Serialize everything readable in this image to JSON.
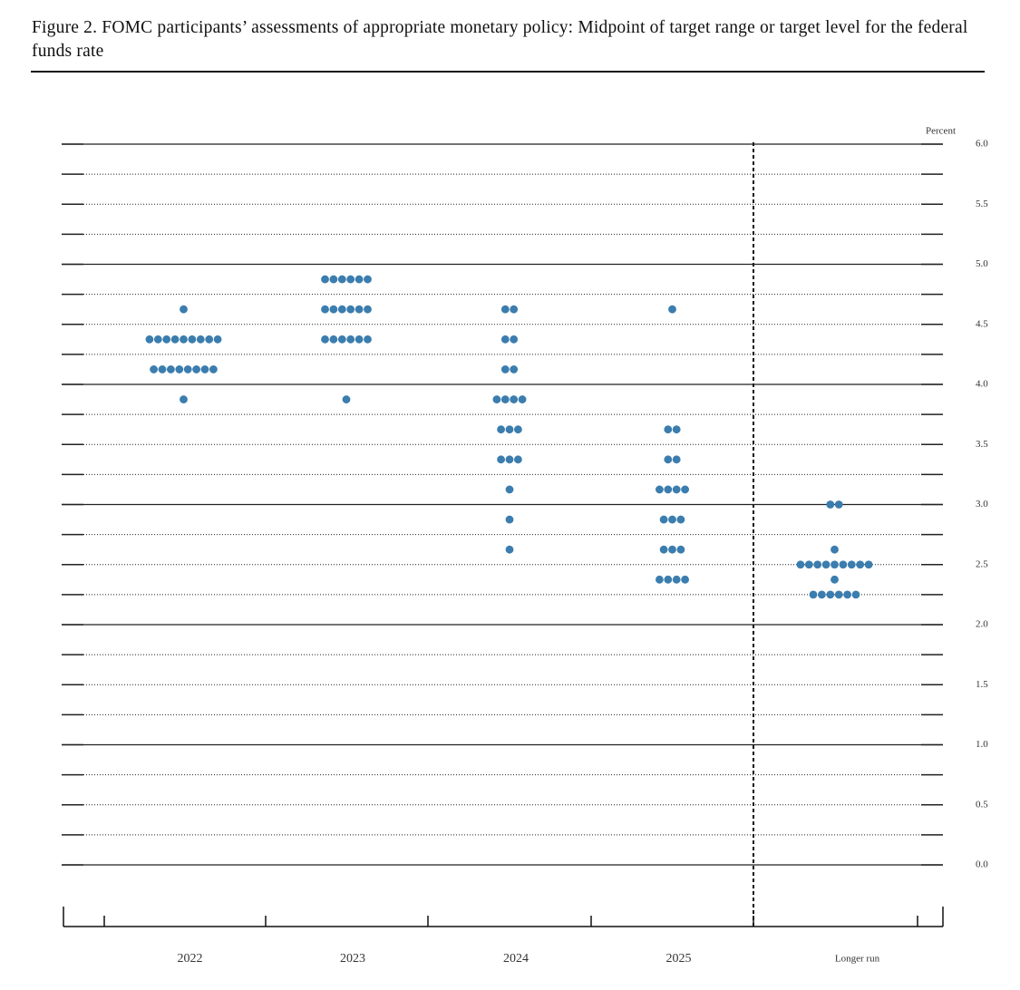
{
  "chart_data": {
    "type": "dot",
    "title": "Figure 2.  FOMC participants’ assessments of appropriate monetary policy: Midpoint of target range or target level for the federal funds rate",
    "y_label": "Percent",
    "categories": [
      "2022",
      "2023",
      "2024",
      "2025",
      "Longer run"
    ],
    "color": "#3b7dae",
    "dots": [
      {
        "levels": [
          4.625,
          4.375,
          4.125,
          3.875
        ],
        "counts": [
          1,
          9,
          8,
          1
        ]
      },
      {
        "levels": [
          4.875,
          4.625,
          4.375,
          3.875
        ],
        "counts": [
          6,
          6,
          6,
          1
        ]
      },
      {
        "levels": [
          4.625,
          4.375,
          4.125,
          3.875,
          3.625,
          3.375,
          3.125,
          2.875,
          2.625
        ],
        "counts": [
          2,
          2,
          2,
          4,
          3,
          3,
          1,
          1,
          1
        ]
      },
      {
        "levels": [
          4.625,
          3.625,
          3.375,
          3.125,
          2.875,
          2.625,
          2.375
        ],
        "counts": [
          1,
          2,
          2,
          4,
          3,
          3,
          4
        ]
      },
      {
        "levels": [
          3.0,
          2.625,
          2.5,
          2.375,
          2.25
        ],
        "counts": [
          2,
          1,
          9,
          1,
          6
        ]
      }
    ],
    "ylim": [
      0,
      6
    ],
    "yticks": [
      {
        "value": 0,
        "label": "0.0"
      },
      {
        "value": 0.5,
        "label": "0.5"
      },
      {
        "value": 1,
        "label": "1.0"
      },
      {
        "value": 1.5,
        "label": "1.5"
      },
      {
        "value": 2,
        "label": "2.0"
      },
      {
        "value": 2.5,
        "label": "2.5"
      },
      {
        "value": 3,
        "label": "3.0"
      },
      {
        "value": 3.5,
        "label": "3.5"
      },
      {
        "value": 4,
        "label": "4.0"
      },
      {
        "value": 4.5,
        "label": "4.5"
      },
      {
        "value": 5,
        "label": "5.0"
      },
      {
        "value": 5.5,
        "label": "5.5"
      },
      {
        "value": 6,
        "label": "6.0"
      }
    ],
    "grid": true
  }
}
